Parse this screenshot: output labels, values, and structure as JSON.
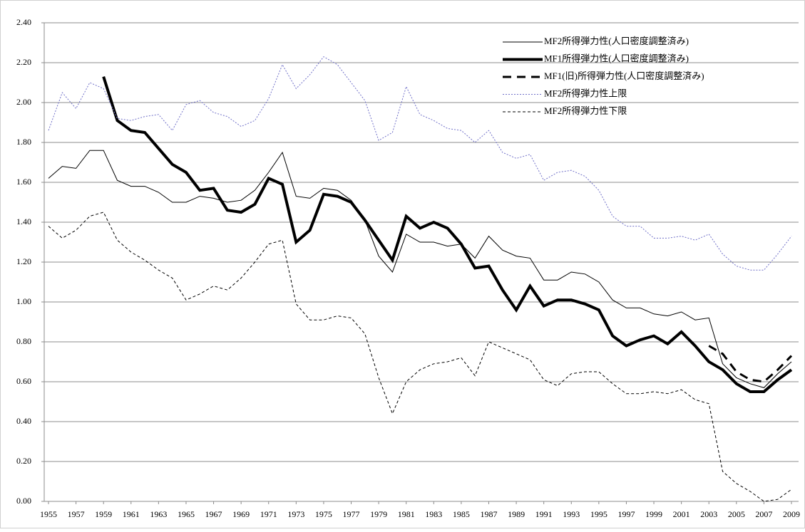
{
  "chart_data": {
    "type": "line",
    "x": [
      1955,
      1956,
      1957,
      1958,
      1959,
      1960,
      1961,
      1962,
      1963,
      1964,
      1965,
      1966,
      1967,
      1968,
      1969,
      1970,
      1971,
      1972,
      1973,
      1974,
      1975,
      1976,
      1977,
      1978,
      1979,
      1980,
      1981,
      1982,
      1983,
      1984,
      1985,
      1986,
      1987,
      1988,
      1989,
      1990,
      1991,
      1992,
      1993,
      1994,
      1995,
      1996,
      1997,
      1998,
      1999,
      2000,
      2001,
      2002,
      2003,
      2004,
      2005,
      2006,
      2007,
      2008,
      2009
    ],
    "xlim": [
      1955,
      2009
    ],
    "xticks": [
      1955,
      1957,
      1959,
      1961,
      1963,
      1965,
      1967,
      1969,
      1971,
      1973,
      1975,
      1977,
      1979,
      1981,
      1983,
      1985,
      1987,
      1989,
      1991,
      1993,
      1995,
      1997,
      1999,
      2001,
      2003,
      2005,
      2007,
      2009
    ],
    "ylim": [
      0,
      2.4
    ],
    "yticks": [
      {
        "value": 0,
        "label": "0.00"
      },
      {
        "value": 0.2,
        "label": "0.20"
      },
      {
        "value": 0.4,
        "label": "0.40"
      },
      {
        "value": 0.6,
        "label": "0.60"
      },
      {
        "value": 0.8,
        "label": "0.80"
      },
      {
        "value": 1.0,
        "label": "1.00"
      },
      {
        "value": 1.2,
        "label": "1.20"
      },
      {
        "value": 1.4,
        "label": "1.40"
      },
      {
        "value": 1.6,
        "label": "1.60"
      },
      {
        "value": 1.8,
        "label": "1.80"
      },
      {
        "value": 2.0,
        "label": "2.00"
      },
      {
        "value": 2.2,
        "label": "2.20"
      },
      {
        "value": 2.4,
        "label": "2.40"
      }
    ],
    "grid": true,
    "legend": "upper right",
    "series": [
      {
        "name": "MF2所得弾力性(人口密度調整済み)",
        "color": "#000000",
        "width": 1,
        "style": "solid",
        "values": [
          1.62,
          1.68,
          1.67,
          1.76,
          1.76,
          1.61,
          1.58,
          1.58,
          1.55,
          1.5,
          1.5,
          1.53,
          1.52,
          1.5,
          1.51,
          1.56,
          1.65,
          1.75,
          1.53,
          1.52,
          1.57,
          1.56,
          1.51,
          1.41,
          1.23,
          1.15,
          1.34,
          1.3,
          1.3,
          1.28,
          1.29,
          1.22,
          1.33,
          1.26,
          1.23,
          1.22,
          1.11,
          1.11,
          1.15,
          1.14,
          1.1,
          1.01,
          0.97,
          0.97,
          0.94,
          0.93,
          0.95,
          0.91,
          0.92,
          0.69,
          0.62,
          0.59,
          0.57,
          0.64,
          0.7
        ]
      },
      {
        "name": "MF1所得弾力性(人口密度調整済み)",
        "color": "#000000",
        "width": 4,
        "style": "solid",
        "values": [
          null,
          null,
          null,
          null,
          2.13,
          1.91,
          1.86,
          1.85,
          1.77,
          1.69,
          1.65,
          1.56,
          1.57,
          1.46,
          1.45,
          1.49,
          1.62,
          1.59,
          1.3,
          1.36,
          1.54,
          1.53,
          1.5,
          1.41,
          1.31,
          1.21,
          1.43,
          1.37,
          1.4,
          1.37,
          1.29,
          1.17,
          1.18,
          1.06,
          0.96,
          1.08,
          0.98,
          1.01,
          1.01,
          0.99,
          0.96,
          0.83,
          0.78,
          0.81,
          0.83,
          0.79,
          0.85,
          0.78,
          0.7,
          0.66,
          0.59,
          0.55,
          0.55,
          0.61,
          0.66
        ]
      },
      {
        "name": "MF1(旧)所得弾力性(人口密度調整済み)",
        "color": "#000000",
        "width": 3,
        "style": "dashed",
        "values": [
          null,
          null,
          null,
          null,
          null,
          null,
          null,
          null,
          null,
          null,
          null,
          null,
          null,
          null,
          null,
          null,
          null,
          null,
          null,
          null,
          null,
          null,
          null,
          null,
          null,
          null,
          null,
          null,
          null,
          null,
          null,
          null,
          null,
          null,
          null,
          null,
          null,
          null,
          null,
          null,
          null,
          null,
          null,
          null,
          null,
          null,
          null,
          null,
          0.78,
          0.74,
          0.65,
          0.61,
          0.6,
          0.66,
          0.73
        ]
      },
      {
        "name": "MF2所得弾力性上限",
        "color": "#6f6fc8",
        "width": 1,
        "style": "dotted",
        "values": [
          1.86,
          2.05,
          1.97,
          2.1,
          2.07,
          1.92,
          1.91,
          1.93,
          1.94,
          1.86,
          1.99,
          2.01,
          1.95,
          1.93,
          1.88,
          1.91,
          2.02,
          2.19,
          2.07,
          2.14,
          2.23,
          2.19,
          2.1,
          2.01,
          1.81,
          1.85,
          2.08,
          1.94,
          1.91,
          1.87,
          1.86,
          1.8,
          1.86,
          1.75,
          1.72,
          1.74,
          1.61,
          1.65,
          1.66,
          1.63,
          1.56,
          1.43,
          1.38,
          1.38,
          1.32,
          1.32,
          1.33,
          1.31,
          1.34,
          1.24,
          1.18,
          1.16,
          1.16,
          1.24,
          1.33
        ]
      },
      {
        "name": "MF2所得弾力性下限",
        "color": "#000000",
        "width": 1,
        "style": "dashed",
        "values": [
          1.38,
          1.32,
          1.36,
          1.43,
          1.45,
          1.31,
          1.25,
          1.21,
          1.16,
          1.12,
          1.01,
          1.04,
          1.08,
          1.06,
          1.12,
          1.2,
          1.29,
          1.31,
          0.99,
          0.91,
          0.91,
          0.93,
          0.92,
          0.84,
          0.62,
          0.44,
          0.6,
          0.66,
          0.69,
          0.7,
          0.72,
          0.63,
          0.8,
          0.77,
          0.74,
          0.71,
          0.61,
          0.58,
          0.64,
          0.65,
          0.65,
          0.59,
          0.54,
          0.54,
          0.55,
          0.54,
          0.56,
          0.51,
          0.49,
          0.15,
          0.09,
          0.05,
          0.0,
          0.01,
          0.06
        ]
      }
    ]
  }
}
